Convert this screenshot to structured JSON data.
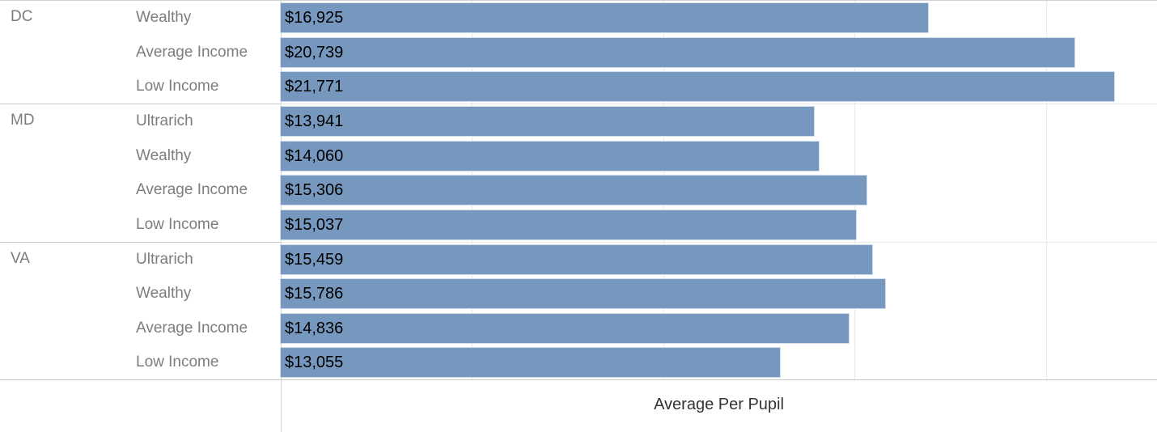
{
  "chart_data": {
    "type": "bar",
    "orientation": "horizontal",
    "title": "",
    "xlabel": "Average Per Pupil",
    "ylabel": "",
    "xlim": [
      0,
      22900
    ],
    "gridline_values": [
      5000,
      10000,
      15000,
      20000
    ],
    "grid": "on",
    "value_format": "currency",
    "groups": [
      {
        "state": "DC",
        "rows": [
          {
            "category": "Wealthy",
            "value": 16925,
            "label": "$16,925"
          },
          {
            "category": "Average Income",
            "value": 20739,
            "label": "$20,739"
          },
          {
            "category": "Low Income",
            "value": 21771,
            "label": "$21,771"
          }
        ]
      },
      {
        "state": "MD",
        "rows": [
          {
            "category": "Ultrarich",
            "value": 13941,
            "label": "$13,941"
          },
          {
            "category": "Wealthy",
            "value": 14060,
            "label": "$14,060"
          },
          {
            "category": "Average Income",
            "value": 15306,
            "label": "$15,306"
          },
          {
            "category": "Low Income",
            "value": 15037,
            "label": "$15,037"
          }
        ]
      },
      {
        "state": "VA",
        "rows": [
          {
            "category": "Ultrarich",
            "value": 15459,
            "label": "$15,459"
          },
          {
            "category": "Wealthy",
            "value": 15786,
            "label": "$15,786"
          },
          {
            "category": "Average Income",
            "value": 14836,
            "label": "$14,836"
          },
          {
            "category": "Low Income",
            "value": 13055,
            "label": "$13,055"
          }
        ]
      }
    ]
  },
  "colors": {
    "bar": "#7798be",
    "bar_label": "#000000",
    "header_text": "#7d7d7d",
    "axis_title_text": "#333333",
    "gridline": "#e9e9e9"
  }
}
